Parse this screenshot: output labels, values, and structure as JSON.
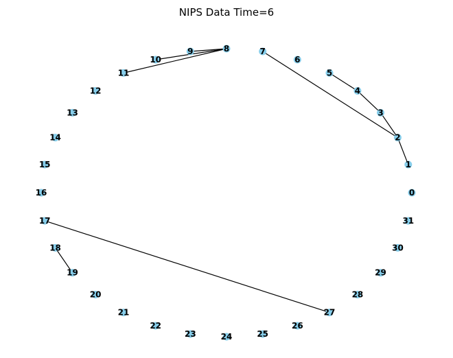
{
  "title": "NIPS Data Time=6",
  "node_color": "#87ceeb",
  "edge_color": "#000000",
  "nodes": [
    "0",
    "1",
    "2",
    "3",
    "4",
    "5",
    "6",
    "7",
    "8",
    "9",
    "10",
    "11",
    "12",
    "13",
    "14",
    "15",
    "16",
    "17",
    "18",
    "19",
    "20",
    "21",
    "22",
    "23",
    "24",
    "25",
    "26",
    "27",
    "28",
    "29",
    "30",
    "31"
  ],
  "edges": [
    [
      "1",
      "2"
    ],
    [
      "2",
      "3"
    ],
    [
      "3",
      "4"
    ],
    [
      "4",
      "5"
    ],
    [
      "2",
      "7"
    ],
    [
      "8",
      "9"
    ],
    [
      "8",
      "10"
    ],
    [
      "8",
      "11"
    ],
    [
      "17",
      "27"
    ],
    [
      "18",
      "19"
    ]
  ]
}
